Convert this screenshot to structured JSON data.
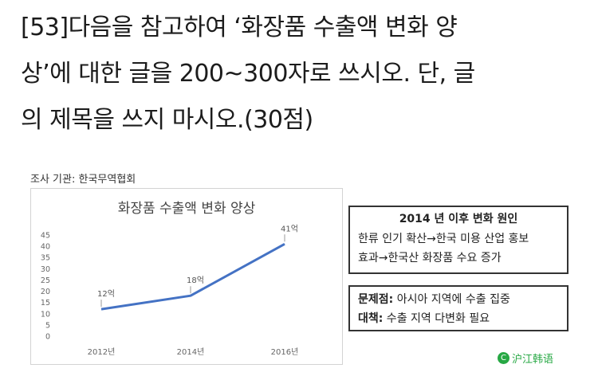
{
  "question": {
    "line1": "[53]다음을 참고하여 ‘화장품 수출액 변화 양",
    "line2": "상’에 대한 글을 200~300자로 쓰시오. 단, 글",
    "line3": "의 제목을 쓰지 마시오.(30점)"
  },
  "source": "조사 기관: 한국무역협회",
  "chart_data": {
    "type": "line",
    "title": "화장품 수출액 변화 양상",
    "categories": [
      "2012년",
      "2014년",
      "2016년"
    ],
    "values": [
      12,
      18,
      41
    ],
    "data_labels": [
      "12억",
      "18억",
      "41억"
    ],
    "yticks": [
      0,
      5,
      10,
      15,
      20,
      25,
      30,
      35,
      40,
      45
    ],
    "ylim": [
      0,
      45
    ],
    "xlabel": "",
    "ylabel": "",
    "grid": false,
    "color": "#4472c4"
  },
  "reason_box": {
    "title": "2014 년 이후 변화 원인",
    "line1": "한류 인기 확산→한국 미용 산업 홍보",
    "line2": "효과→한국산 화장품 수요 증가"
  },
  "issue_box": {
    "problem_label": "문제점:",
    "problem_text": " 아시아 지역에 수출 집중",
    "solution_label": "대책:",
    "solution_text": " 수출 지역 다변화 필요"
  },
  "brand": {
    "logo": "C",
    "name": "沪江韩语",
    "color": "#27a844"
  }
}
